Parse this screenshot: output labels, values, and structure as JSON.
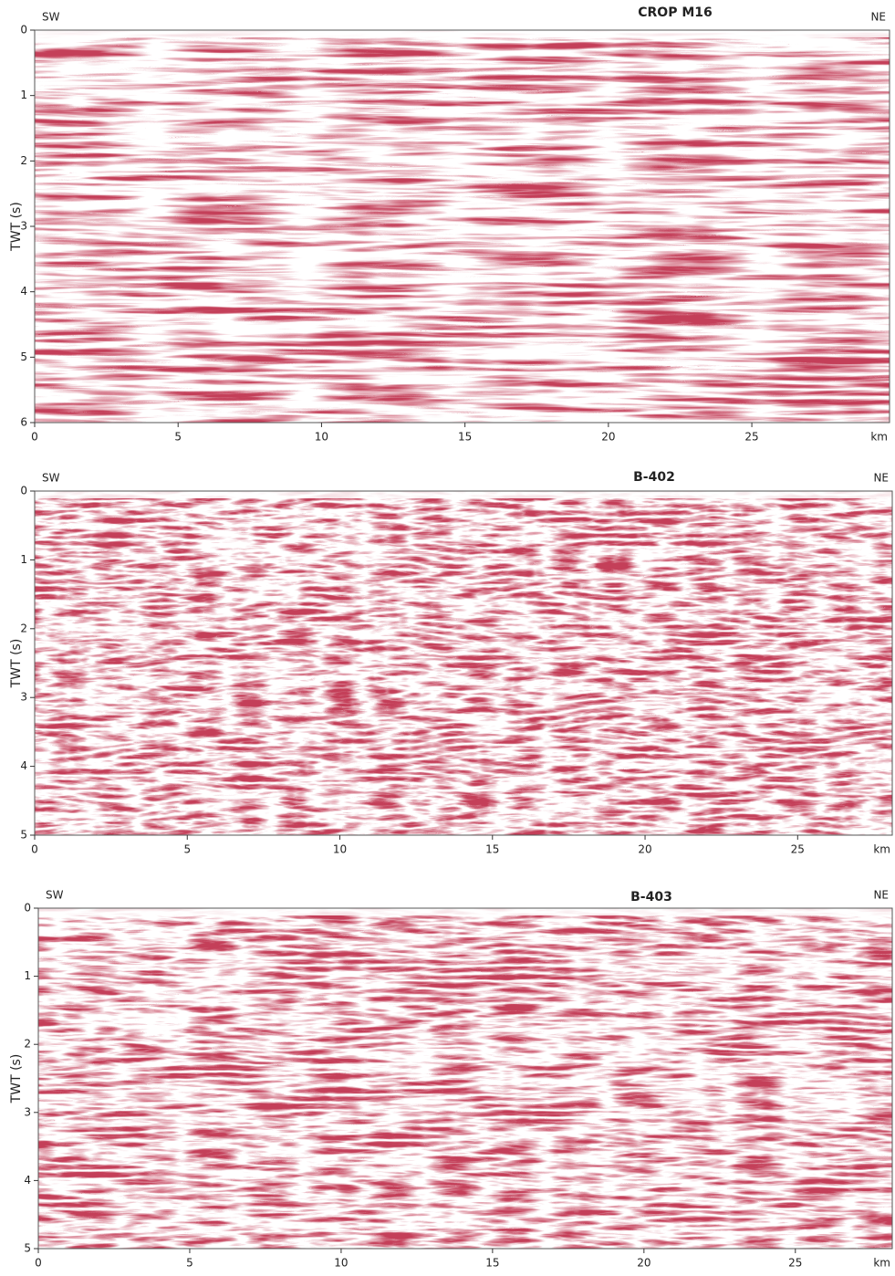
{
  "chart_data": [
    {
      "type": "seismic",
      "title": "CROP M16",
      "left_label": "SW",
      "right_label": "NE",
      "y_label": "TWT (s)",
      "x_unit_label": "km",
      "xlim": [
        0,
        29.8
      ],
      "xticks": [
        0,
        5,
        10,
        15,
        20,
        25
      ],
      "ylim": [
        0,
        6
      ],
      "yticks": [
        0,
        1,
        2,
        3,
        4,
        5,
        6
      ]
    },
    {
      "type": "seismic",
      "title": "B-402",
      "left_label": "SW",
      "right_label": "NE",
      "y_label": "TWT (s)",
      "x_unit_label": "km",
      "xlim": [
        0,
        28.1
      ],
      "xticks": [
        0,
        5,
        10,
        15,
        20,
        25
      ],
      "ylim": [
        0,
        5
      ],
      "yticks": [
        0,
        1,
        2,
        3,
        4,
        5
      ]
    },
    {
      "type": "seismic",
      "title": "B-403",
      "left_label": "SW",
      "right_label": "NE",
      "y_label": "TWT (s)",
      "x_unit_label": "km",
      "xlim": [
        0,
        28.2
      ],
      "xticks": [
        0,
        5,
        10,
        15,
        20,
        25
      ],
      "ylim": [
        0,
        5
      ],
      "yticks": [
        0,
        1,
        2,
        3,
        4,
        5
      ]
    }
  ]
}
